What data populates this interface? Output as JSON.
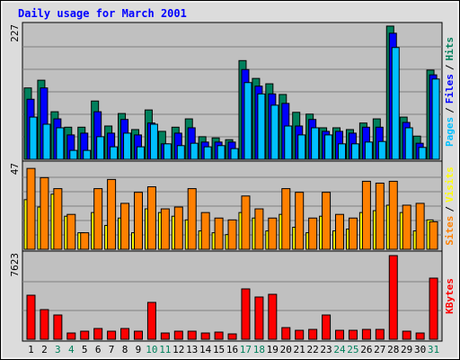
{
  "chart_data": {
    "type": "bar",
    "title": "Daily usage for March 2001",
    "categories": [
      "1",
      "2",
      "3",
      "4",
      "5",
      "6",
      "7",
      "8",
      "9",
      "10",
      "11",
      "12",
      "13",
      "14",
      "15",
      "16",
      "17",
      "18",
      "19",
      "20",
      "21",
      "22",
      "23",
      "24",
      "25",
      "26",
      "27",
      "28",
      "29",
      "30",
      "31"
    ],
    "category_colors": [
      "#000000",
      "#000000",
      "#00805c",
      "#00805c",
      "#000000",
      "#000000",
      "#000000",
      "#000000",
      "#000000",
      "#00805c",
      "#00805c",
      "#000000",
      "#000000",
      "#000000",
      "#000000",
      "#000000",
      "#00805c",
      "#00805c",
      "#000000",
      "#000000",
      "#000000",
      "#000000",
      "#000000",
      "#00805c",
      "#00805c",
      "#000000",
      "#000000",
      "#000000",
      "#000000",
      "#000000",
      "#00805c"
    ],
    "label_separator": "/",
    "panels": [
      {
        "ylim": [
          0,
          227
        ],
        "yticks": [
          227
        ],
        "grid_lines": 6,
        "series": [
          {
            "name": "Hits",
            "color": "#00805c",
            "values": [
              120,
              133,
              80,
              54,
              54,
              98,
              56,
              77,
              50,
              83,
              47,
              54,
              68,
              38,
              36,
              33,
              166,
              136,
              127,
              109,
              79,
              76,
              53,
              53,
              50,
              61,
              68,
              224,
              71,
              39,
              150
            ]
          },
          {
            "name": "Files",
            "color": "#0000ff",
            "values": [
              101,
              120,
              68,
              41,
              44,
              80,
              44,
              67,
              41,
              61,
              26,
              44,
              53,
              29,
              29,
              29,
              151,
              123,
              110,
              94,
              56,
              67,
              47,
              47,
              44,
              54,
              54,
              212,
              62,
              27,
              142
            ]
          },
          {
            "name": "Pages",
            "color": "#00c0ff",
            "values": [
              71,
              59,
              53,
              15,
              15,
              38,
              21,
              44,
              21,
              59,
              26,
              23,
              27,
              21,
              23,
              18,
              129,
              110,
              91,
              56,
              41,
              53,
              41,
              26,
              26,
              29,
              30,
              188,
              53,
              20,
              135
            ]
          }
        ]
      },
      {
        "ylim": [
          0,
          47
        ],
        "yticks": [
          47
        ],
        "grid_lines": 6,
        "series": [
          {
            "name": "Visits",
            "color": "#ffff00",
            "values": [
              27,
              23,
              30,
              18,
              9,
              20,
              13,
              17,
              9,
              22,
              20,
              18,
              16,
              10,
              9,
              8,
              20,
              17,
              10,
              19,
              12,
              9,
              18,
              10,
              11,
              20,
              21,
              24,
              20,
              10,
              16
            ]
          },
          {
            "name": "Sites",
            "color": "#ff8000",
            "values": [
              44,
              39,
              33,
              19,
              9,
              33,
              38,
              25,
              31,
              34,
              22,
              23,
              33,
              20,
              17,
              16,
              29,
              22,
              17,
              33,
              31,
              17,
              31,
              19,
              17,
              37,
              36,
              37,
              24,
              25,
              15
            ]
          }
        ]
      },
      {
        "ylim": [
          0,
          7623
        ],
        "yticks": [
          7623
        ],
        "grid_lines": 3,
        "series": [
          {
            "name": "KBytes",
            "color": "#ff0000",
            "values": [
              3890,
              2620,
              2145,
              556,
              715,
              953,
              715,
              953,
              715,
              3256,
              556,
              715,
              715,
              556,
              635,
              476,
              4447,
              3732,
              3970,
              1032,
              794,
              873,
              2144,
              794,
              794,
              873,
              873,
              7385,
              715,
              556,
              5399
            ]
          }
        ]
      }
    ]
  }
}
